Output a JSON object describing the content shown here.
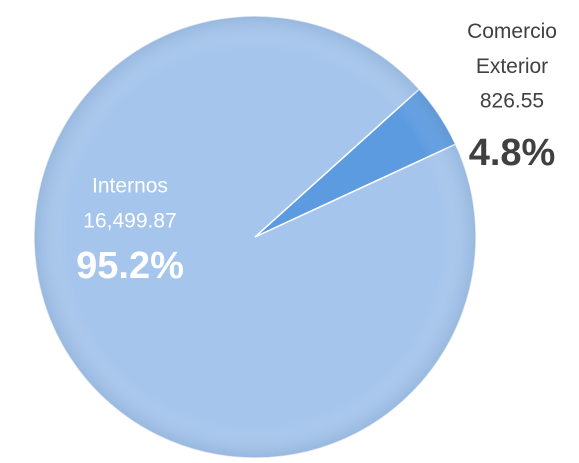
{
  "chart_data": {
    "type": "pie",
    "categories": [
      "Internos",
      "Comercio Exterior"
    ],
    "values": [
      16499.87,
      826.55
    ],
    "value_labels": [
      "16,499.87",
      "826.55"
    ],
    "percentages": [
      95.2,
      4.8
    ],
    "percentage_labels": [
      "95.2%",
      "4.8%"
    ],
    "colors": [
      "#a6c5ec",
      "#5c9be0"
    ]
  }
}
